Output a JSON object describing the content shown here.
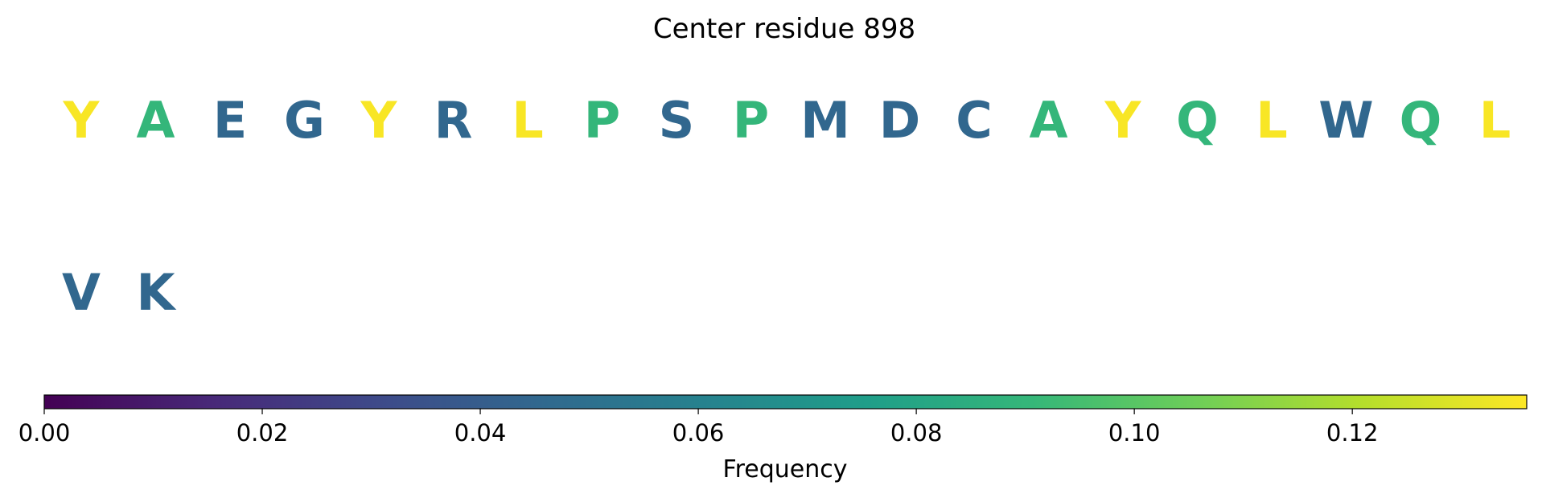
{
  "chart_data": {
    "type": "heatmap",
    "title": "Center residue 898",
    "residues": [
      {
        "letter": "Y",
        "frequency": 0.135
      },
      {
        "letter": "A",
        "frequency": 0.09
      },
      {
        "letter": "E",
        "frequency": 0.045
      },
      {
        "letter": "G",
        "frequency": 0.045
      },
      {
        "letter": "Y",
        "frequency": 0.135
      },
      {
        "letter": "R",
        "frequency": 0.045
      },
      {
        "letter": "L",
        "frequency": 0.135
      },
      {
        "letter": "P",
        "frequency": 0.09
      },
      {
        "letter": "S",
        "frequency": 0.045
      },
      {
        "letter": "P",
        "frequency": 0.09
      },
      {
        "letter": "M",
        "frequency": 0.045
      },
      {
        "letter": "D",
        "frequency": 0.045
      },
      {
        "letter": "C",
        "frequency": 0.045
      },
      {
        "letter": "A",
        "frequency": 0.09
      },
      {
        "letter": "Y",
        "frequency": 0.135
      },
      {
        "letter": "Q",
        "frequency": 0.09
      },
      {
        "letter": "L",
        "frequency": 0.135
      },
      {
        "letter": "W",
        "frequency": 0.045
      },
      {
        "letter": "Q",
        "frequency": 0.09
      },
      {
        "letter": "L",
        "frequency": 0.135
      },
      {
        "letter": "V",
        "frequency": 0.045
      },
      {
        "letter": "K",
        "frequency": 0.045
      }
    ],
    "colorbar": {
      "colormap": "viridis",
      "range": [
        0,
        0.136
      ],
      "ticks": [
        0.0,
        0.02,
        0.04,
        0.06,
        0.08,
        0.1,
        0.12
      ],
      "tick_labels": [
        "0.00",
        "0.02",
        "0.04",
        "0.06",
        "0.08",
        "0.10",
        "0.12"
      ],
      "label": "Frequency"
    }
  }
}
